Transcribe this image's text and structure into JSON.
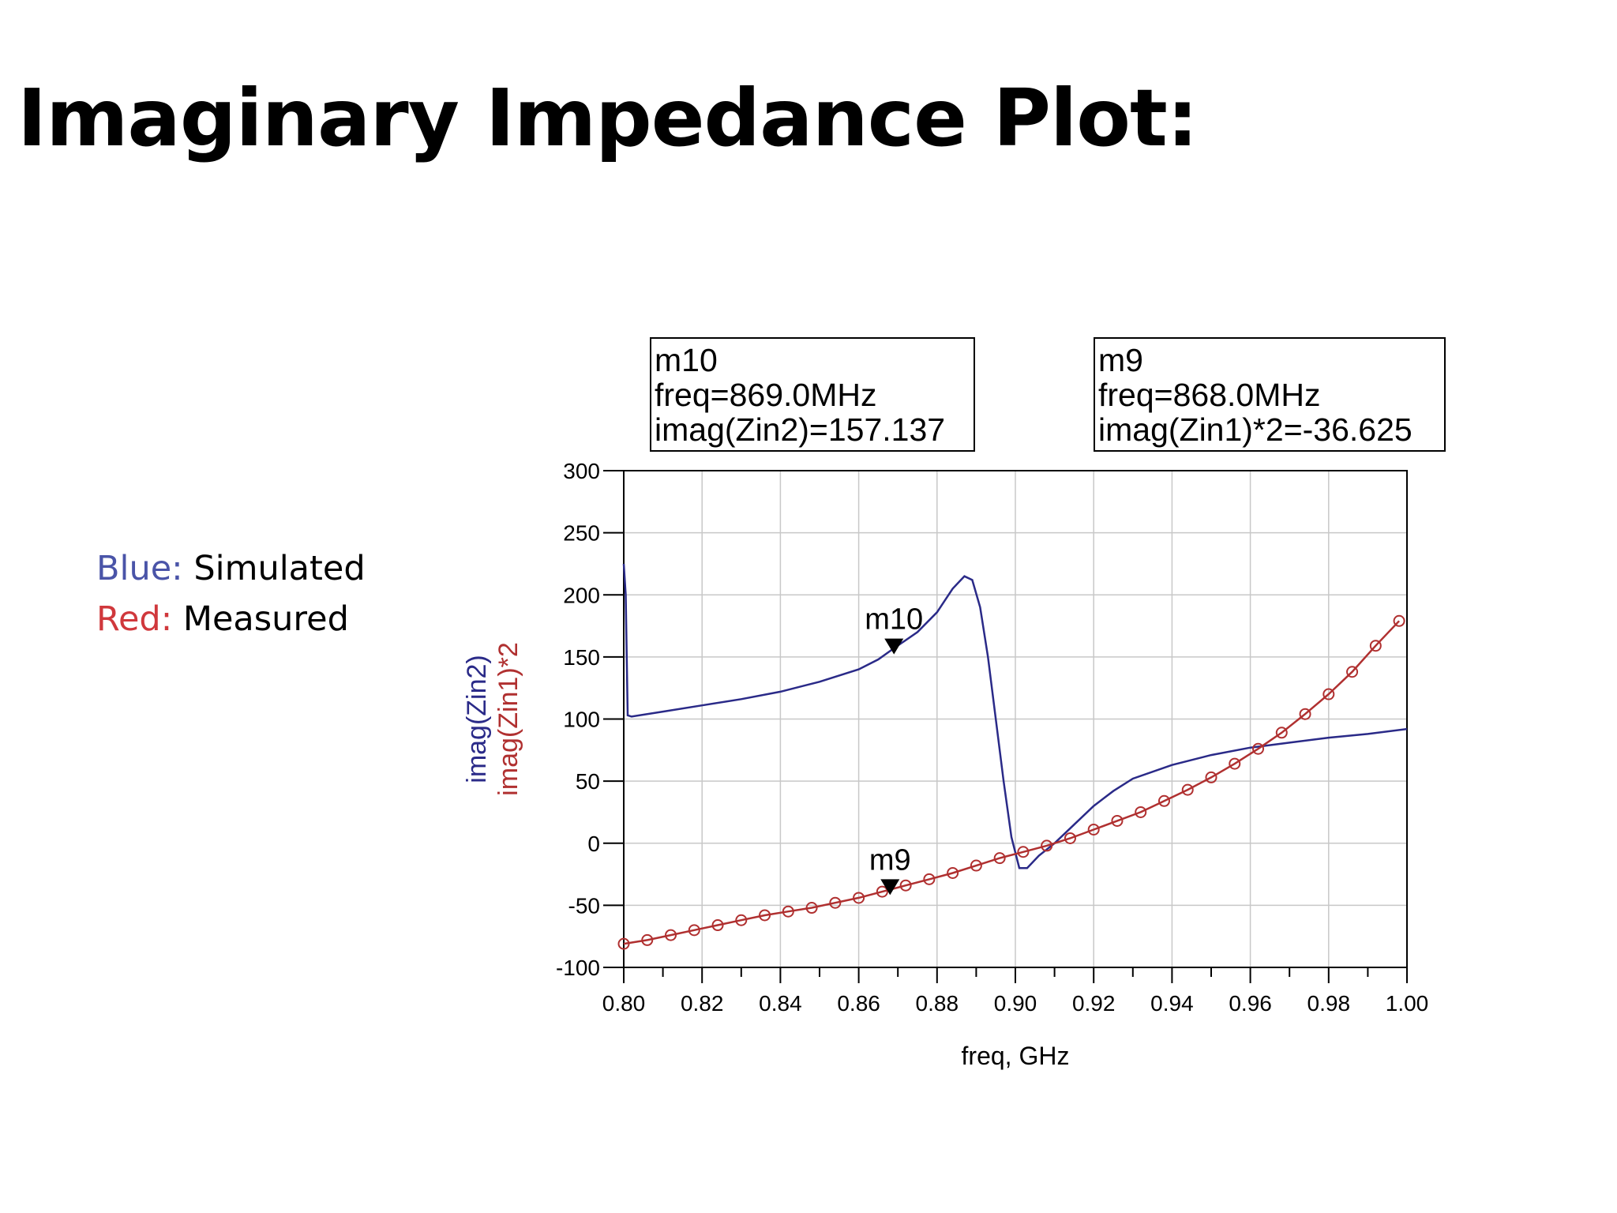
{
  "slide": {
    "title": "Imaginary Impedance Plot:"
  },
  "legend": {
    "items": [
      {
        "key": "Blue:",
        "text": " Simulated",
        "color": "#4a54a8"
      },
      {
        "key": "Red:",
        "text": " Measured",
        "color": "#d0383c"
      }
    ]
  },
  "chart_data": {
    "type": "line",
    "xlabel": "freq, GHz",
    "ylabels": [
      "imag(Zin2)",
      "imag(Zin1)*2"
    ],
    "xlim": [
      0.8,
      1.0
    ],
    "ylim": [
      -100,
      300
    ],
    "x_ticks": [
      0.8,
      0.82,
      0.84,
      0.86,
      0.88,
      0.9,
      0.92,
      0.94,
      0.96,
      0.98,
      1.0
    ],
    "x_tick_labels": [
      "0.80",
      "0.82",
      "0.84",
      "0.86",
      "0.88",
      "0.90",
      "0.92",
      "0.94",
      "0.96",
      "0.98",
      "1.00"
    ],
    "y_ticks": [
      300,
      250,
      200,
      150,
      100,
      50,
      0,
      -50,
      -100
    ],
    "y_tick_labels": [
      "300",
      "250",
      "200",
      "150",
      "100",
      "50",
      "0",
      "-50",
      "-100"
    ],
    "grid": true,
    "series": [
      {
        "expression": "imag(Zin2)",
        "color": "#2a2a88",
        "marker": "none",
        "x": [
          0.8,
          0.8005,
          0.801,
          0.802,
          0.81,
          0.82,
          0.83,
          0.84,
          0.85,
          0.86,
          0.865,
          0.869,
          0.875,
          0.88,
          0.884,
          0.887,
          0.889,
          0.891,
          0.893,
          0.895,
          0.897,
          0.899,
          0.901,
          0.903,
          0.906,
          0.91,
          0.915,
          0.92,
          0.925,
          0.93,
          0.94,
          0.95,
          0.96,
          0.97,
          0.98,
          0.99,
          1.0
        ],
        "y": [
          225,
          200,
          103,
          102,
          106,
          111,
          116,
          122,
          130,
          140,
          148,
          157,
          170,
          186,
          205,
          215,
          212,
          190,
          150,
          100,
          50,
          5,
          -20,
          -20,
          -10,
          0,
          15,
          30,
          42,
          52,
          63,
          71,
          77,
          81,
          85,
          88,
          92
        ]
      },
      {
        "expression": "imag(Zin1)*2",
        "color": "#b03030",
        "marker": "circle",
        "x": [
          0.8,
          0.806,
          0.812,
          0.818,
          0.824,
          0.83,
          0.836,
          0.842,
          0.848,
          0.854,
          0.86,
          0.866,
          0.872,
          0.878,
          0.884,
          0.89,
          0.896,
          0.902,
          0.908,
          0.914,
          0.92,
          0.926,
          0.932,
          0.938,
          0.944,
          0.95,
          0.956,
          0.962,
          0.968,
          0.974,
          0.98,
          0.986,
          0.992,
          0.998
        ],
        "y": [
          -81,
          -78,
          -74,
          -70,
          -66,
          -62,
          -58,
          -55,
          -52,
          -48,
          -44,
          -39,
          -34,
          -29,
          -24,
          -18,
          -12,
          -7,
          -2,
          4,
          11,
          18,
          25,
          34,
          43,
          53,
          64,
          76,
          89,
          104,
          120,
          138,
          159,
          179
        ]
      }
    ],
    "markers": [
      {
        "name": "m10",
        "lines": [
          "m10",
          "freq=869.0MHz",
          "imag(Zin2)=157.137"
        ],
        "x": 0.869,
        "y": 157.137
      },
      {
        "name": "m9",
        "lines": [
          "m9",
          "freq=868.0MHz",
          "imag(Zin1)*2=-36.625"
        ],
        "x": 0.868,
        "y": -36.625
      }
    ]
  }
}
